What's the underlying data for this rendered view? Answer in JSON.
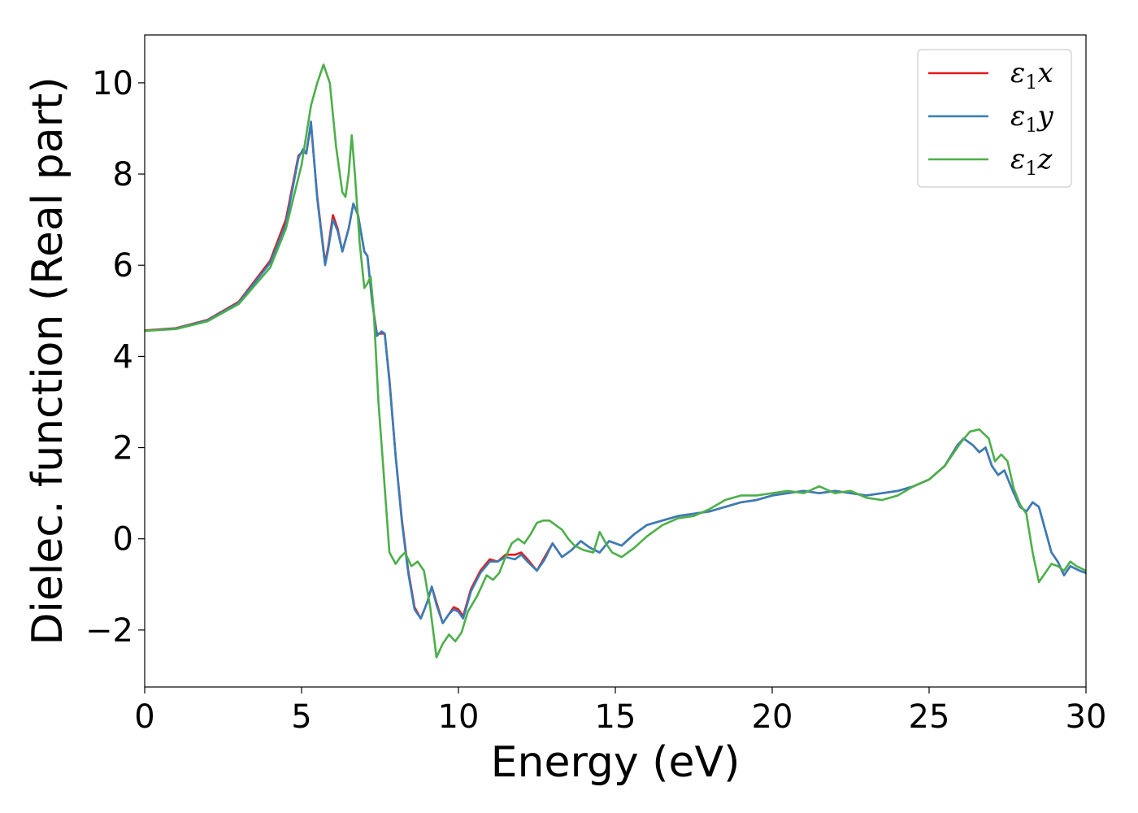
{
  "chart_data": {
    "type": "line",
    "xlabel": "Energy (eV)",
    "ylabel": "Dielec. function (Real part)",
    "xlim": [
      0,
      30
    ],
    "ylim": [
      -3.25,
      11.05
    ],
    "xticks": [
      0,
      5,
      10,
      15,
      20,
      25,
      30
    ],
    "xtick_labels": [
      "0",
      "5",
      "10",
      "15",
      "20",
      "25",
      "30"
    ],
    "yticks": [
      -2,
      0,
      2,
      4,
      6,
      8,
      10
    ],
    "ytick_labels": [
      "−2",
      "0",
      "2",
      "4",
      "6",
      "8",
      "10"
    ],
    "grid": false,
    "legend_position": "top-right",
    "series": [
      {
        "name": "ε1x",
        "legend": {
          "base": "ε",
          "sub": "1",
          "tail": "x"
        },
        "color": "#e41a1c",
        "points": [
          [
            0,
            4.57
          ],
          [
            1,
            4.62
          ],
          [
            2,
            4.8
          ],
          [
            3,
            5.2
          ],
          [
            4,
            6.1
          ],
          [
            4.5,
            7.0
          ],
          [
            4.9,
            8.4
          ],
          [
            5.05,
            8.5
          ],
          [
            5.15,
            8.45
          ],
          [
            5.3,
            9.1
          ],
          [
            5.5,
            7.5
          ],
          [
            5.75,
            6.05
          ],
          [
            5.85,
            6.4
          ],
          [
            6.0,
            7.1
          ],
          [
            6.15,
            6.8
          ],
          [
            6.3,
            6.3
          ],
          [
            6.5,
            6.8
          ],
          [
            6.65,
            7.35
          ],
          [
            6.8,
            7.1
          ],
          [
            7.0,
            6.3
          ],
          [
            7.1,
            6.2
          ],
          [
            7.25,
            5.2
          ],
          [
            7.4,
            4.5
          ],
          [
            7.55,
            4.5
          ],
          [
            7.65,
            4.5
          ],
          [
            7.8,
            3.5
          ],
          [
            8.0,
            1.8
          ],
          [
            8.2,
            0.4
          ],
          [
            8.4,
            -0.7
          ],
          [
            8.6,
            -1.5
          ],
          [
            8.8,
            -1.75
          ],
          [
            9.0,
            -1.4
          ],
          [
            9.15,
            -1.05
          ],
          [
            9.3,
            -1.4
          ],
          [
            9.5,
            -1.85
          ],
          [
            9.7,
            -1.65
          ],
          [
            9.85,
            -1.5
          ],
          [
            10.0,
            -1.55
          ],
          [
            10.15,
            -1.7
          ],
          [
            10.4,
            -1.1
          ],
          [
            10.7,
            -0.7
          ],
          [
            11.0,
            -0.45
          ],
          [
            11.25,
            -0.5
          ],
          [
            11.5,
            -0.35
          ],
          [
            11.8,
            -0.35
          ],
          [
            12.0,
            -0.3
          ],
          [
            12.2,
            -0.45
          ],
          [
            12.5,
            -0.7
          ],
          [
            12.75,
            -0.4
          ],
          [
            13.0,
            -0.1
          ],
          [
            13.3,
            -0.4
          ],
          [
            13.6,
            -0.25
          ],
          [
            13.9,
            -0.05
          ],
          [
            14.2,
            -0.2
          ],
          [
            14.5,
            -0.3
          ],
          [
            14.8,
            -0.05
          ],
          [
            15.2,
            -0.15
          ],
          [
            15.6,
            0.1
          ],
          [
            16.0,
            0.3
          ],
          [
            16.5,
            0.4
          ],
          [
            17.0,
            0.5
          ],
          [
            17.5,
            0.55
          ],
          [
            18.0,
            0.6
          ],
          [
            18.5,
            0.7
          ],
          [
            19.0,
            0.8
          ],
          [
            19.5,
            0.85
          ],
          [
            20.0,
            0.95
          ],
          [
            20.5,
            1.0
          ],
          [
            21.0,
            1.05
          ],
          [
            21.5,
            1.0
          ],
          [
            22.0,
            1.05
          ],
          [
            22.5,
            1.0
          ],
          [
            23.0,
            0.95
          ],
          [
            23.5,
            1.0
          ],
          [
            24.0,
            1.05
          ],
          [
            24.5,
            1.15
          ],
          [
            25.0,
            1.3
          ],
          [
            25.5,
            1.6
          ],
          [
            25.9,
            2.05
          ],
          [
            26.1,
            2.2
          ],
          [
            26.4,
            2.05
          ],
          [
            26.6,
            1.9
          ],
          [
            26.8,
            2.0
          ],
          [
            27.0,
            1.6
          ],
          [
            27.2,
            1.4
          ],
          [
            27.4,
            1.5
          ],
          [
            27.7,
            1.0
          ],
          [
            27.9,
            0.7
          ],
          [
            28.1,
            0.6
          ],
          [
            28.3,
            0.8
          ],
          [
            28.5,
            0.7
          ],
          [
            28.7,
            0.2
          ],
          [
            28.9,
            -0.3
          ],
          [
            29.1,
            -0.5
          ],
          [
            29.3,
            -0.8
          ],
          [
            29.5,
            -0.6
          ],
          [
            29.8,
            -0.7
          ],
          [
            30.0,
            -0.75
          ]
        ]
      },
      {
        "name": "ε1y",
        "legend": {
          "base": "ε",
          "sub": "1",
          "tail": "y"
        },
        "color": "#377eb8",
        "points": [
          [
            0,
            4.56
          ],
          [
            1,
            4.61
          ],
          [
            2,
            4.79
          ],
          [
            3,
            5.18
          ],
          [
            4,
            6.05
          ],
          [
            4.5,
            6.9
          ],
          [
            4.9,
            8.35
          ],
          [
            5.05,
            8.55
          ],
          [
            5.15,
            8.45
          ],
          [
            5.3,
            9.15
          ],
          [
            5.5,
            7.45
          ],
          [
            5.75,
            6.0
          ],
          [
            5.85,
            6.35
          ],
          [
            6.0,
            7.0
          ],
          [
            6.15,
            6.75
          ],
          [
            6.3,
            6.3
          ],
          [
            6.5,
            6.8
          ],
          [
            6.65,
            7.35
          ],
          [
            6.8,
            7.1
          ],
          [
            7.0,
            6.3
          ],
          [
            7.1,
            6.2
          ],
          [
            7.25,
            5.2
          ],
          [
            7.4,
            4.45
          ],
          [
            7.55,
            4.55
          ],
          [
            7.65,
            4.5
          ],
          [
            7.8,
            3.45
          ],
          [
            8.0,
            1.8
          ],
          [
            8.2,
            0.35
          ],
          [
            8.4,
            -0.75
          ],
          [
            8.6,
            -1.55
          ],
          [
            8.8,
            -1.75
          ],
          [
            9.0,
            -1.4
          ],
          [
            9.15,
            -1.05
          ],
          [
            9.3,
            -1.45
          ],
          [
            9.5,
            -1.85
          ],
          [
            9.7,
            -1.65
          ],
          [
            9.85,
            -1.55
          ],
          [
            10.0,
            -1.6
          ],
          [
            10.15,
            -1.75
          ],
          [
            10.4,
            -1.15
          ],
          [
            10.7,
            -0.75
          ],
          [
            11.0,
            -0.5
          ],
          [
            11.25,
            -0.5
          ],
          [
            11.5,
            -0.4
          ],
          [
            11.8,
            -0.45
          ],
          [
            12.0,
            -0.35
          ],
          [
            12.2,
            -0.5
          ],
          [
            12.5,
            -0.7
          ],
          [
            12.75,
            -0.45
          ],
          [
            13.0,
            -0.1
          ],
          [
            13.3,
            -0.4
          ],
          [
            13.6,
            -0.25
          ],
          [
            13.9,
            -0.05
          ],
          [
            14.2,
            -0.2
          ],
          [
            14.5,
            -0.3
          ],
          [
            14.8,
            -0.05
          ],
          [
            15.2,
            -0.15
          ],
          [
            15.6,
            0.1
          ],
          [
            16.0,
            0.3
          ],
          [
            16.5,
            0.4
          ],
          [
            17.0,
            0.5
          ],
          [
            17.5,
            0.55
          ],
          [
            18.0,
            0.6
          ],
          [
            18.5,
            0.7
          ],
          [
            19.0,
            0.8
          ],
          [
            19.5,
            0.85
          ],
          [
            20.0,
            0.95
          ],
          [
            20.5,
            1.0
          ],
          [
            21.0,
            1.05
          ],
          [
            21.5,
            1.0
          ],
          [
            22.0,
            1.05
          ],
          [
            22.5,
            1.0
          ],
          [
            23.0,
            0.95
          ],
          [
            23.5,
            1.0
          ],
          [
            24.0,
            1.05
          ],
          [
            24.5,
            1.15
          ],
          [
            25.0,
            1.3
          ],
          [
            25.5,
            1.6
          ],
          [
            25.9,
            2.05
          ],
          [
            26.1,
            2.2
          ],
          [
            26.4,
            2.05
          ],
          [
            26.6,
            1.9
          ],
          [
            26.8,
            2.0
          ],
          [
            27.0,
            1.6
          ],
          [
            27.2,
            1.4
          ],
          [
            27.4,
            1.5
          ],
          [
            27.7,
            1.0
          ],
          [
            27.9,
            0.7
          ],
          [
            28.1,
            0.6
          ],
          [
            28.3,
            0.8
          ],
          [
            28.5,
            0.7
          ],
          [
            28.7,
            0.2
          ],
          [
            28.9,
            -0.3
          ],
          [
            29.1,
            -0.5
          ],
          [
            29.3,
            -0.8
          ],
          [
            29.5,
            -0.6
          ],
          [
            29.8,
            -0.7
          ],
          [
            30.0,
            -0.75
          ]
        ]
      },
      {
        "name": "ε1z",
        "legend": {
          "base": "ε",
          "sub": "1",
          "tail": "z"
        },
        "color": "#4daf4a",
        "points": [
          [
            0,
            4.56
          ],
          [
            1,
            4.6
          ],
          [
            2,
            4.77
          ],
          [
            3,
            5.15
          ],
          [
            4,
            5.95
          ],
          [
            4.5,
            6.8
          ],
          [
            5.0,
            8.2
          ],
          [
            5.3,
            9.5
          ],
          [
            5.5,
            10.0
          ],
          [
            5.7,
            10.4
          ],
          [
            5.9,
            10.0
          ],
          [
            6.1,
            8.6
          ],
          [
            6.3,
            7.6
          ],
          [
            6.4,
            7.5
          ],
          [
            6.5,
            8.0
          ],
          [
            6.6,
            8.85
          ],
          [
            6.7,
            8.0
          ],
          [
            6.85,
            6.5
          ],
          [
            7.0,
            5.5
          ],
          [
            7.1,
            5.6
          ],
          [
            7.2,
            5.75
          ],
          [
            7.3,
            5.0
          ],
          [
            7.45,
            3.0
          ],
          [
            7.6,
            1.6
          ],
          [
            7.8,
            -0.3
          ],
          [
            8.0,
            -0.55
          ],
          [
            8.15,
            -0.4
          ],
          [
            8.3,
            -0.3
          ],
          [
            8.5,
            -0.6
          ],
          [
            8.7,
            -0.5
          ],
          [
            8.9,
            -0.7
          ],
          [
            9.1,
            -1.5
          ],
          [
            9.3,
            -2.6
          ],
          [
            9.5,
            -2.3
          ],
          [
            9.7,
            -2.1
          ],
          [
            9.9,
            -2.25
          ],
          [
            10.1,
            -2.05
          ],
          [
            10.3,
            -1.6
          ],
          [
            10.6,
            -1.25
          ],
          [
            10.9,
            -0.8
          ],
          [
            11.1,
            -0.9
          ],
          [
            11.3,
            -0.75
          ],
          [
            11.5,
            -0.4
          ],
          [
            11.7,
            -0.1
          ],
          [
            11.9,
            0.0
          ],
          [
            12.1,
            -0.1
          ],
          [
            12.3,
            0.1
          ],
          [
            12.5,
            0.35
          ],
          [
            12.7,
            0.4
          ],
          [
            12.9,
            0.4
          ],
          [
            13.1,
            0.3
          ],
          [
            13.3,
            0.2
          ],
          [
            13.5,
            0.0
          ],
          [
            13.7,
            -0.15
          ],
          [
            14.0,
            -0.25
          ],
          [
            14.3,
            -0.3
          ],
          [
            14.5,
            0.15
          ],
          [
            14.7,
            -0.1
          ],
          [
            14.9,
            -0.3
          ],
          [
            15.2,
            -0.4
          ],
          [
            15.6,
            -0.2
          ],
          [
            16.0,
            0.05
          ],
          [
            16.5,
            0.3
          ],
          [
            17.0,
            0.45
          ],
          [
            17.5,
            0.5
          ],
          [
            18.0,
            0.65
          ],
          [
            18.5,
            0.85
          ],
          [
            19.0,
            0.95
          ],
          [
            19.5,
            0.95
          ],
          [
            20.0,
            1.0
          ],
          [
            20.5,
            1.05
          ],
          [
            21.0,
            1.0
          ],
          [
            21.5,
            1.15
          ],
          [
            22.0,
            1.0
          ],
          [
            22.5,
            1.05
          ],
          [
            23.0,
            0.9
          ],
          [
            23.5,
            0.85
          ],
          [
            24.0,
            0.95
          ],
          [
            24.5,
            1.15
          ],
          [
            25.0,
            1.3
          ],
          [
            25.5,
            1.6
          ],
          [
            26.0,
            2.1
          ],
          [
            26.3,
            2.35
          ],
          [
            26.6,
            2.4
          ],
          [
            26.9,
            2.2
          ],
          [
            27.1,
            1.7
          ],
          [
            27.3,
            1.85
          ],
          [
            27.5,
            1.7
          ],
          [
            27.7,
            1.1
          ],
          [
            27.9,
            0.75
          ],
          [
            28.1,
            0.55
          ],
          [
            28.3,
            -0.3
          ],
          [
            28.5,
            -0.95
          ],
          [
            28.7,
            -0.75
          ],
          [
            28.9,
            -0.55
          ],
          [
            29.1,
            -0.6
          ],
          [
            29.3,
            -0.7
          ],
          [
            29.5,
            -0.5
          ],
          [
            29.7,
            -0.6
          ],
          [
            30.0,
            -0.7
          ]
        ]
      }
    ]
  }
}
